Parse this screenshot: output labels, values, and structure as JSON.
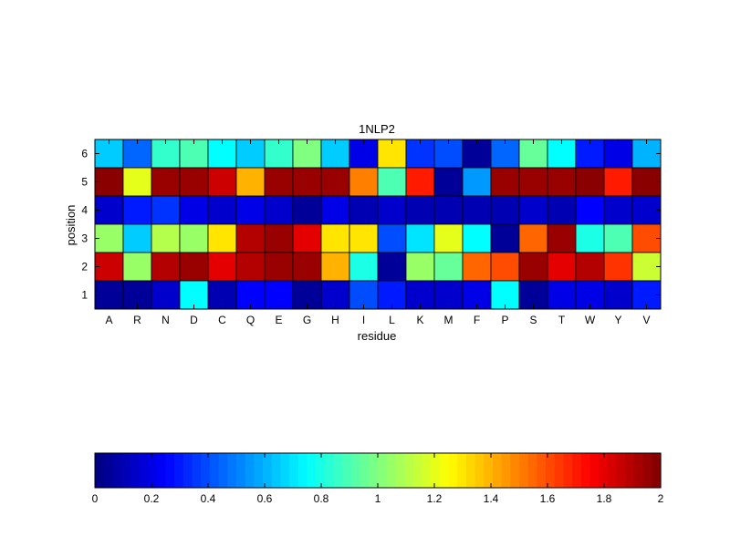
{
  "chart_data": [
    {
      "type": "heatmap",
      "title": "1NLP2",
      "xlabel": "residue",
      "ylabel": "position",
      "x_categories": [
        "A",
        "R",
        "N",
        "D",
        "C",
        "Q",
        "E",
        "G",
        "H",
        "I",
        "L",
        "K",
        "M",
        "F",
        "P",
        "S",
        "T",
        "W",
        "Y",
        "V"
      ],
      "y_categories": [
        "6",
        "5",
        "4",
        "3",
        "2",
        "1"
      ],
      "colormap": "jet",
      "clim": [
        0,
        2
      ],
      "values": [
        [
          0.65,
          0.45,
          0.85,
          0.9,
          0.75,
          0.65,
          0.85,
          1.0,
          0.65,
          0.2,
          1.3,
          0.35,
          0.4,
          0.05,
          0.45,
          0.95,
          0.75,
          0.3,
          0.2,
          0.6
        ],
        [
          1.98,
          1.2,
          1.95,
          1.95,
          1.85,
          1.4,
          1.95,
          1.95,
          1.95,
          1.5,
          0.9,
          1.7,
          0.05,
          0.55,
          1.95,
          1.95,
          1.95,
          1.98,
          1.7,
          1.98
        ],
        [
          0.15,
          0.3,
          0.35,
          0.2,
          0.15,
          0.2,
          0.15,
          0.05,
          0.2,
          0.1,
          0.15,
          0.1,
          0.1,
          0.1,
          0.1,
          0.15,
          0.1,
          0.25,
          0.15,
          0.15
        ],
        [
          1.05,
          0.65,
          1.1,
          1.05,
          1.3,
          1.9,
          1.95,
          1.8,
          1.3,
          1.3,
          0.4,
          0.7,
          1.2,
          0.75,
          0.05,
          1.55,
          1.95,
          0.8,
          0.9,
          1.6
        ],
        [
          1.85,
          1.05,
          1.9,
          1.95,
          1.8,
          1.9,
          1.95,
          1.95,
          1.4,
          0.8,
          0.05,
          1.05,
          0.95,
          1.55,
          1.6,
          1.95,
          1.8,
          1.9,
          1.65,
          1.15
        ],
        [
          0.05,
          0.05,
          0.15,
          0.75,
          0.1,
          0.25,
          0.25,
          0.05,
          0.15,
          0.4,
          0.3,
          0.15,
          0.15,
          0.2,
          0.75,
          0.05,
          0.2,
          0.2,
          0.15,
          0.3
        ]
      ]
    },
    {
      "type": "colorbar",
      "colormap": "jet",
      "clim": [
        0,
        2
      ],
      "ticks": [
        "0",
        "0.2",
        "0.4",
        "0.6",
        "0.8",
        "1",
        "1.2",
        "1.4",
        "1.6",
        "1.8",
        "2"
      ]
    }
  ]
}
